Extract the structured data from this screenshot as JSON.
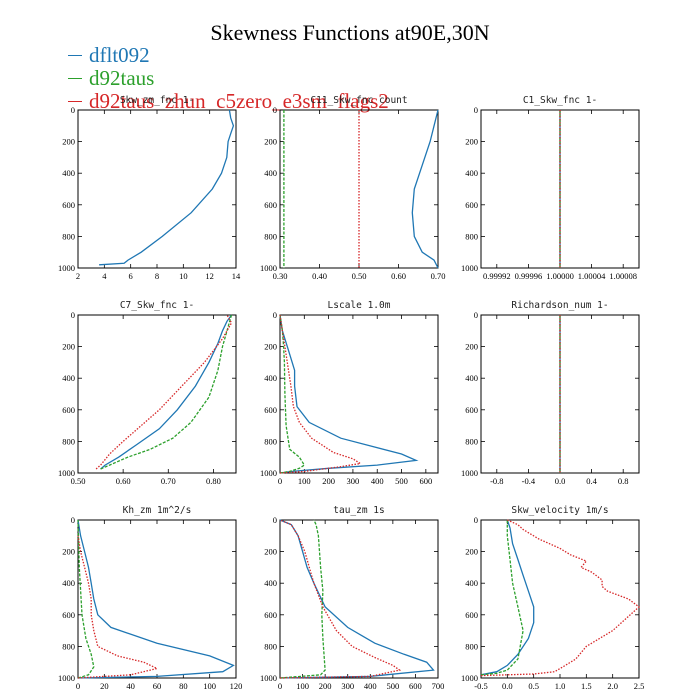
{
  "title": "Skewness Functions at90E,30N",
  "legend": [
    {
      "name": "dflt092",
      "color": "#1f77b4"
    },
    {
      "name": "d92taus",
      "color": "#2ca02c"
    },
    {
      "name": "d92taus_zhun_c5zero_e3sm_flags2",
      "color": "#d62728"
    }
  ],
  "chart_data": [
    {
      "type": "line",
      "title": "Skw_zm_fnc 1-",
      "xlim": [
        2,
        14
      ],
      "ylim": [
        0,
        1000
      ],
      "y_inverted": true,
      "xticks": [
        "2",
        "4",
        "6",
        "8",
        "10",
        "12",
        "14"
      ],
      "yticks": [
        "0",
        "200",
        "400",
        "600",
        "800",
        "1000"
      ],
      "series": [
        {
          "name": "dflt092",
          "x": [
            3.6,
            5.5,
            5.8,
            6.8,
            8.4,
            10.6,
            12.2,
            12.9,
            13.3,
            13.4,
            13.6,
            13.8,
            13.6,
            13.5
          ],
          "y": [
            980,
            970,
            950,
            900,
            800,
            650,
            500,
            400,
            300,
            200,
            150,
            100,
            50,
            0
          ]
        }
      ]
    },
    {
      "type": "line",
      "title": "C11_Skw_fnc count",
      "xlim": [
        0.3,
        0.7
      ],
      "ylim": [
        0,
        1000
      ],
      "y_inverted": true,
      "xticks": [
        "0.30",
        "0.40",
        "0.50",
        "0.60",
        "0.70"
      ],
      "yticks": [
        "0",
        "200",
        "400",
        "600",
        "800",
        "1000"
      ],
      "series": [
        {
          "name": "dflt092",
          "x": [
            0.7,
            0.68,
            0.66,
            0.64,
            0.635,
            0.64,
            0.66,
            0.69,
            0.7
          ],
          "y": [
            0,
            200,
            350,
            500,
            650,
            800,
            900,
            950,
            1000
          ]
        },
        {
          "name": "d92taus",
          "x": [
            0.31,
            0.31,
            0.31,
            0.31,
            0.31,
            0.31,
            0.31
          ],
          "y": [
            0,
            100,
            300,
            500,
            700,
            900,
            1000
          ]
        },
        {
          "name": "d92taus_zhun_c5zero_e3sm_flags2",
          "x": [
            0.5,
            0.5
          ],
          "y": [
            0,
            1000
          ]
        }
      ]
    },
    {
      "type": "line",
      "title": "C1_Skw_fnc 1-",
      "xlim": [
        0.9999,
        1.0001
      ],
      "ylim": [
        0,
        1000
      ],
      "y_inverted": true,
      "xticks": [
        "0.99992",
        "0.99996",
        "1.00000",
        "1.00004",
        "1.00008"
      ],
      "yticks": [
        "0",
        "200",
        "400",
        "600",
        "800",
        "1000"
      ],
      "series": [
        {
          "name": "dflt092",
          "x": [
            1.0,
            1.0
          ],
          "y": [
            0,
            1000
          ]
        },
        {
          "name": "d92taus",
          "x": [
            1.0,
            1.0
          ],
          "y": [
            0,
            1000
          ]
        },
        {
          "name": "d92taus_zhun_c5zero_e3sm_flags2",
          "x": [
            1.0,
            1.0
          ],
          "y": [
            0,
            1000
          ]
        }
      ]
    },
    {
      "type": "line",
      "title": "C7_Skw_fnc 1-",
      "xlim": [
        0.5,
        0.85
      ],
      "ylim": [
        0,
        1000
      ],
      "y_inverted": true,
      "xticks": [
        "0.50",
        "0.60",
        "0.70",
        "0.80"
      ],
      "yticks": [
        "0",
        "200",
        "400",
        "600",
        "800",
        "1000"
      ],
      "series": [
        {
          "name": "dflt092",
          "x": [
            0.55,
            0.56,
            0.59,
            0.63,
            0.68,
            0.72,
            0.76,
            0.79,
            0.81,
            0.82,
            0.83,
            0.84
          ],
          "y": [
            975,
            950,
            900,
            820,
            720,
            600,
            450,
            300,
            180,
            100,
            40,
            0
          ]
        },
        {
          "name": "d92taus",
          "x": [
            0.55,
            0.57,
            0.61,
            0.66,
            0.71,
            0.75,
            0.79,
            0.81,
            0.82,
            0.83,
            0.84
          ],
          "y": [
            975,
            950,
            900,
            850,
            780,
            680,
            520,
            350,
            200,
            100,
            0
          ]
        },
        {
          "name": "d92taus_zhun_c5zero_e3sm_flags2",
          "x": [
            0.54,
            0.55,
            0.57,
            0.6,
            0.64,
            0.68,
            0.73,
            0.78,
            0.82,
            0.84,
            0.83
          ],
          "y": [
            975,
            950,
            880,
            800,
            700,
            600,
            450,
            300,
            150,
            50,
            0
          ]
        }
      ]
    },
    {
      "type": "line",
      "title": "Lscale 1.0m",
      "xlim": [
        0,
        650
      ],
      "ylim": [
        0,
        1000
      ],
      "y_inverted": true,
      "xticks": [
        "0",
        "100",
        "200",
        "300",
        "400",
        "500",
        "600"
      ],
      "yticks": [
        "0",
        "200",
        "400",
        "600",
        "800",
        "1000"
      ],
      "series": [
        {
          "name": "dflt092",
          "x": [
            0,
            50,
            200,
            400,
            560,
            500,
            250,
            120,
            70,
            60,
            60,
            50,
            30,
            10,
            0
          ],
          "y": [
            1000,
            990,
            970,
            950,
            920,
            880,
            780,
            680,
            580,
            450,
            350,
            300,
            200,
            100,
            0
          ]
        },
        {
          "name": "d92taus",
          "x": [
            0,
            40,
            80,
            100,
            80,
            40,
            25,
            20,
            18,
            15,
            10,
            0
          ],
          "y": [
            1000,
            990,
            970,
            950,
            900,
            850,
            700,
            500,
            300,
            200,
            100,
            0
          ]
        },
        {
          "name": "d92taus_zhun_c5zero_e3sm_flags2",
          "x": [
            0,
            100,
            250,
            330,
            300,
            220,
            130,
            80,
            55,
            45,
            35,
            20,
            10,
            0
          ],
          "y": [
            1000,
            990,
            960,
            940,
            910,
            870,
            780,
            680,
            580,
            450,
            350,
            200,
            100,
            0
          ]
        }
      ]
    },
    {
      "type": "line",
      "title": "Richardson_num 1-",
      "xlim": [
        -1,
        1
      ],
      "ylim": [
        0,
        1000
      ],
      "y_inverted": true,
      "xticks": [
        "-0.8",
        "-0.4",
        "0.0",
        "0.4",
        "0.8"
      ],
      "yticks": [
        "0",
        "200",
        "400",
        "600",
        "800",
        "1000"
      ],
      "series": [
        {
          "name": "dflt092",
          "x": [
            0,
            0
          ],
          "y": [
            0,
            1000
          ]
        },
        {
          "name": "d92taus",
          "x": [
            0,
            0
          ],
          "y": [
            0,
            1000
          ]
        },
        {
          "name": "d92taus_zhun_c5zero_e3sm_flags2",
          "x": [
            0,
            0
          ],
          "y": [
            0,
            1000
          ]
        }
      ]
    },
    {
      "type": "line",
      "title": "Kh_zm 1m^2/s",
      "xlim": [
        0,
        120
      ],
      "ylim": [
        0,
        1000
      ],
      "y_inverted": true,
      "xticks": [
        "0",
        "20",
        "40",
        "60",
        "80",
        "100",
        "120"
      ],
      "yticks": [
        "0",
        "200",
        "400",
        "600",
        "800",
        "1000"
      ],
      "series": [
        {
          "name": "dflt092",
          "x": [
            0,
            60,
            110,
            118,
            100,
            60,
            25,
            15,
            12,
            10,
            8,
            5,
            2,
            0
          ],
          "y": [
            1000,
            990,
            960,
            920,
            860,
            780,
            680,
            600,
            500,
            400,
            300,
            200,
            100,
            0
          ]
        },
        {
          "name": "d92taus",
          "x": [
            0,
            8,
            12,
            10,
            6,
            3,
            1,
            0
          ],
          "y": [
            1000,
            980,
            930,
            850,
            750,
            600,
            300,
            0
          ]
        },
        {
          "name": "d92taus_zhun_c5zero_e3sm_flags2",
          "x": [
            0,
            40,
            60,
            50,
            30,
            15,
            12,
            10,
            10,
            8,
            5,
            2,
            0
          ],
          "y": [
            1000,
            980,
            940,
            900,
            860,
            800,
            700,
            600,
            500,
            400,
            300,
            200,
            100
          ]
        }
      ]
    },
    {
      "type": "line",
      "title": "tau_zm 1s",
      "xlim": [
        0,
        700
      ],
      "ylim": [
        0,
        1000
      ],
      "y_inverted": true,
      "xticks": [
        "0",
        "100",
        "200",
        "300",
        "400",
        "500",
        "600",
        "700"
      ],
      "yticks": [
        "0",
        "200",
        "400",
        "600",
        "800",
        "1000"
      ],
      "series": [
        {
          "name": "dflt092",
          "x": [
            0,
            400,
            680,
            650,
            550,
            420,
            300,
            200,
            150,
            120,
            100,
            80,
            50,
            0
          ],
          "y": [
            1000,
            990,
            950,
            900,
            850,
            780,
            680,
            550,
            400,
            300,
            200,
            100,
            30,
            0
          ]
        },
        {
          "name": "d92taus",
          "x": [
            0,
            180,
            200,
            195,
            190,
            185,
            190,
            180,
            175,
            170,
            160,
            150
          ],
          "y": [
            1000,
            980,
            950,
            850,
            750,
            600,
            450,
            300,
            200,
            100,
            30,
            0
          ]
        },
        {
          "name": "d92taus_zhun_c5zero_e3sm_flags2",
          "x": [
            0,
            400,
            530,
            500,
            420,
            320,
            250,
            190,
            150,
            130,
            110,
            80,
            50,
            0
          ],
          "y": [
            1000,
            990,
            950,
            920,
            870,
            800,
            700,
            550,
            400,
            300,
            200,
            100,
            30,
            0
          ]
        }
      ]
    },
    {
      "type": "line",
      "title": "Skw_velocity 1m/s",
      "xlim": [
        -0.5,
        2.5
      ],
      "ylim": [
        0,
        1000
      ],
      "y_inverted": true,
      "xticks": [
        "-0.5",
        "0.0",
        "0.5",
        "1.0",
        "1.5",
        "2.0",
        "2.5"
      ],
      "yticks": [
        "0",
        "200",
        "400",
        "600",
        "800",
        "1000"
      ],
      "series": [
        {
          "name": "dflt092",
          "x": [
            -0.5,
            -0.2,
            0.0,
            0.2,
            0.4,
            0.5,
            0.5,
            0.4,
            0.3,
            0.2,
            0.1,
            0.05,
            0.0
          ],
          "y": [
            980,
            960,
            920,
            850,
            750,
            650,
            550,
            450,
            350,
            250,
            150,
            50,
            0
          ]
        },
        {
          "name": "d92taus",
          "x": [
            -0.5,
            -0.2,
            0.0,
            0.2,
            0.3,
            0.2,
            0.1,
            0.05,
            0.0,
            0.0
          ],
          "y": [
            980,
            970,
            950,
            880,
            700,
            550,
            400,
            250,
            100,
            0
          ]
        },
        {
          "name": "d92taus_zhun_c5zero_e3sm_flags2",
          "x": [
            -0.5,
            0.5,
            0.9,
            1.1,
            1.3,
            1.5,
            2.0,
            2.5,
            2.3,
            1.9,
            1.8,
            1.8,
            1.6,
            1.4,
            1.5,
            1.2,
            1.0,
            0.6,
            0.3,
            0.2,
            0.0
          ],
          "y": [
            985,
            975,
            960,
            920,
            880,
            800,
            700,
            550,
            500,
            450,
            420,
            380,
            330,
            300,
            260,
            220,
            180,
            120,
            60,
            30,
            0
          ]
        }
      ]
    }
  ]
}
